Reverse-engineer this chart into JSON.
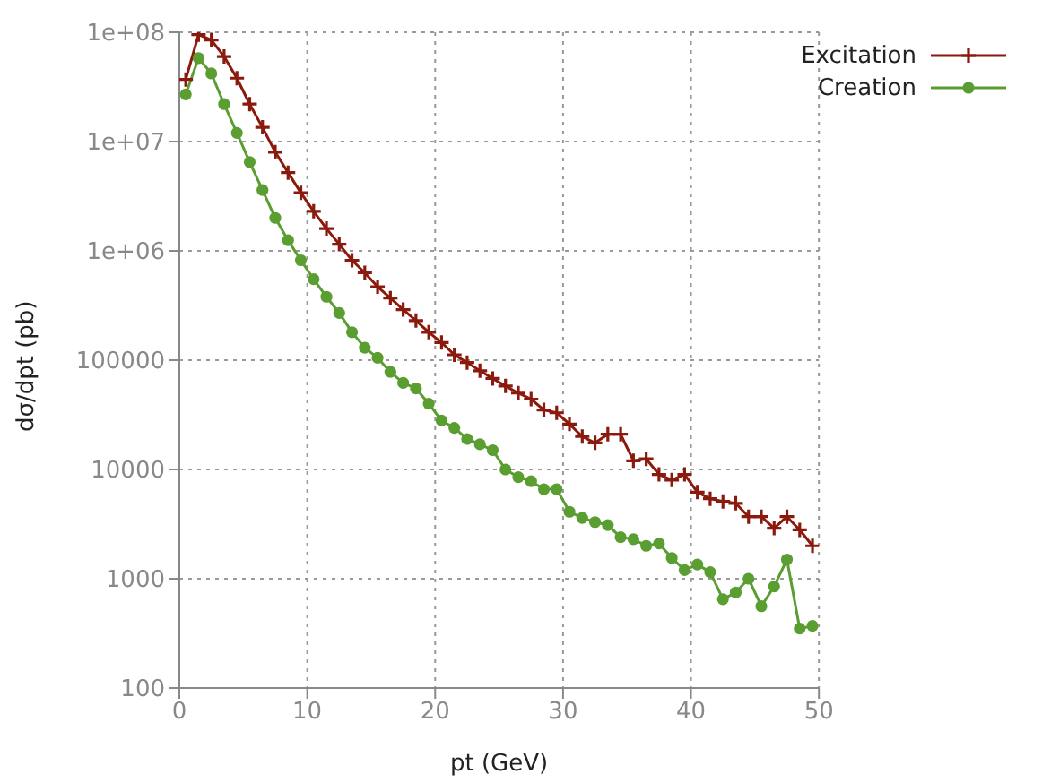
{
  "chart_data": {
    "type": "line",
    "xlabel": "pt (GeV)",
    "ylabel": "dσ/dpt (pb)",
    "log": "y",
    "grid": true,
    "legend": "top right",
    "x": [
      0.5,
      1.5,
      2.5,
      3.5,
      4.5,
      5.5,
      6.5,
      7.5,
      8.5,
      9.5,
      10.5,
      11.5,
      12.5,
      13.5,
      14.5,
      15.5,
      16.5,
      17.5,
      18.5,
      19.5,
      20.5,
      21.5,
      22.5,
      23.5,
      24.5,
      25.5,
      26.5,
      27.5,
      28.5,
      29.5,
      30.5,
      31.5,
      32.5,
      33.5,
      34.5,
      35.5,
      36.5,
      37.5,
      38.5,
      39.5,
      40.5,
      41.5,
      42.5,
      43.5,
      44.5,
      45.5,
      46.5,
      47.5,
      48.5,
      49.5
    ],
    "xlim": [
      0,
      50
    ],
    "xticks": [
      0,
      10,
      20,
      30,
      40,
      50
    ],
    "ylim": [
      100,
      100000000
    ],
    "yticks": [
      100,
      1000,
      10000,
      100000,
      {
        "value": 1000000,
        "label": "1e+06"
      },
      {
        "value": 10000000,
        "label": "1e+07"
      },
      {
        "value": 100000000,
        "label": "1e+08"
      }
    ],
    "series": [
      {
        "name": "Excitation",
        "color": "#8b1a0e",
        "marker": "cross",
        "values": [
          37000000,
          95000000,
          85000000,
          60000000,
          38000000,
          22000000,
          13500000,
          8000000,
          5200000,
          3400000,
          2300000,
          1600000,
          1150000,
          820000,
          630000,
          470000,
          370000,
          290000,
          230000,
          180000,
          145000,
          112000,
          95000,
          80000,
          68000,
          58000,
          50000,
          44000,
          35000,
          33000,
          26000,
          20000,
          17500,
          21000,
          21000,
          12000,
          12500,
          9000,
          8000,
          9000,
          6200,
          5400,
          5100,
          4900,
          3700,
          3700,
          2900,
          3700,
          2800,
          2000
        ]
      },
      {
        "name": "Creation",
        "color": "#5a9e32",
        "marker": "circle",
        "values": [
          27000000,
          58000000,
          42000000,
          22000000,
          12000000,
          6500000,
          3600000,
          2000000,
          1250000,
          820000,
          550000,
          380000,
          270000,
          180000,
          130000,
          105000,
          78000,
          62000,
          55000,
          40000,
          28000,
          24000,
          19000,
          17000,
          15000,
          10000,
          8500,
          7800,
          6600,
          6600,
          4100,
          3600,
          3300,
          3100,
          2400,
          2300,
          2000,
          2100,
          1550,
          1200,
          1350,
          1150,
          650,
          750,
          1000,
          560,
          850,
          1500,
          350,
          370
        ]
      }
    ]
  }
}
